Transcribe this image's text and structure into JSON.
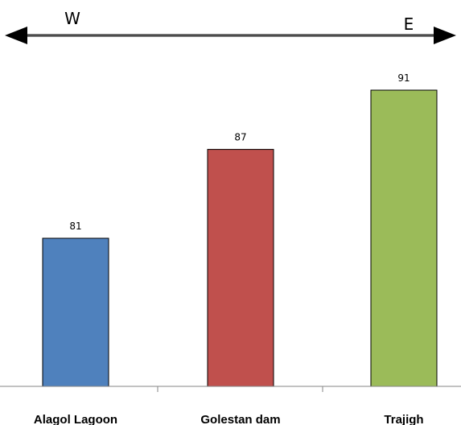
{
  "direction": {
    "left_label": "W",
    "right_label": "E"
  },
  "chart_data": {
    "type": "bar",
    "categories": [
      "Alagol Lagoon",
      "Golestan dam",
      "Trajigh"
    ],
    "values": [
      81,
      87,
      91
    ],
    "data_labels": [
      "81",
      "87",
      "91"
    ],
    "colors": [
      "#4F81BD",
      "#C0504D",
      "#9BBB59"
    ],
    "title": "",
    "xlabel": "",
    "ylabel": "",
    "ylim": [
      71,
      96
    ],
    "grid": false,
    "legend": "none"
  }
}
